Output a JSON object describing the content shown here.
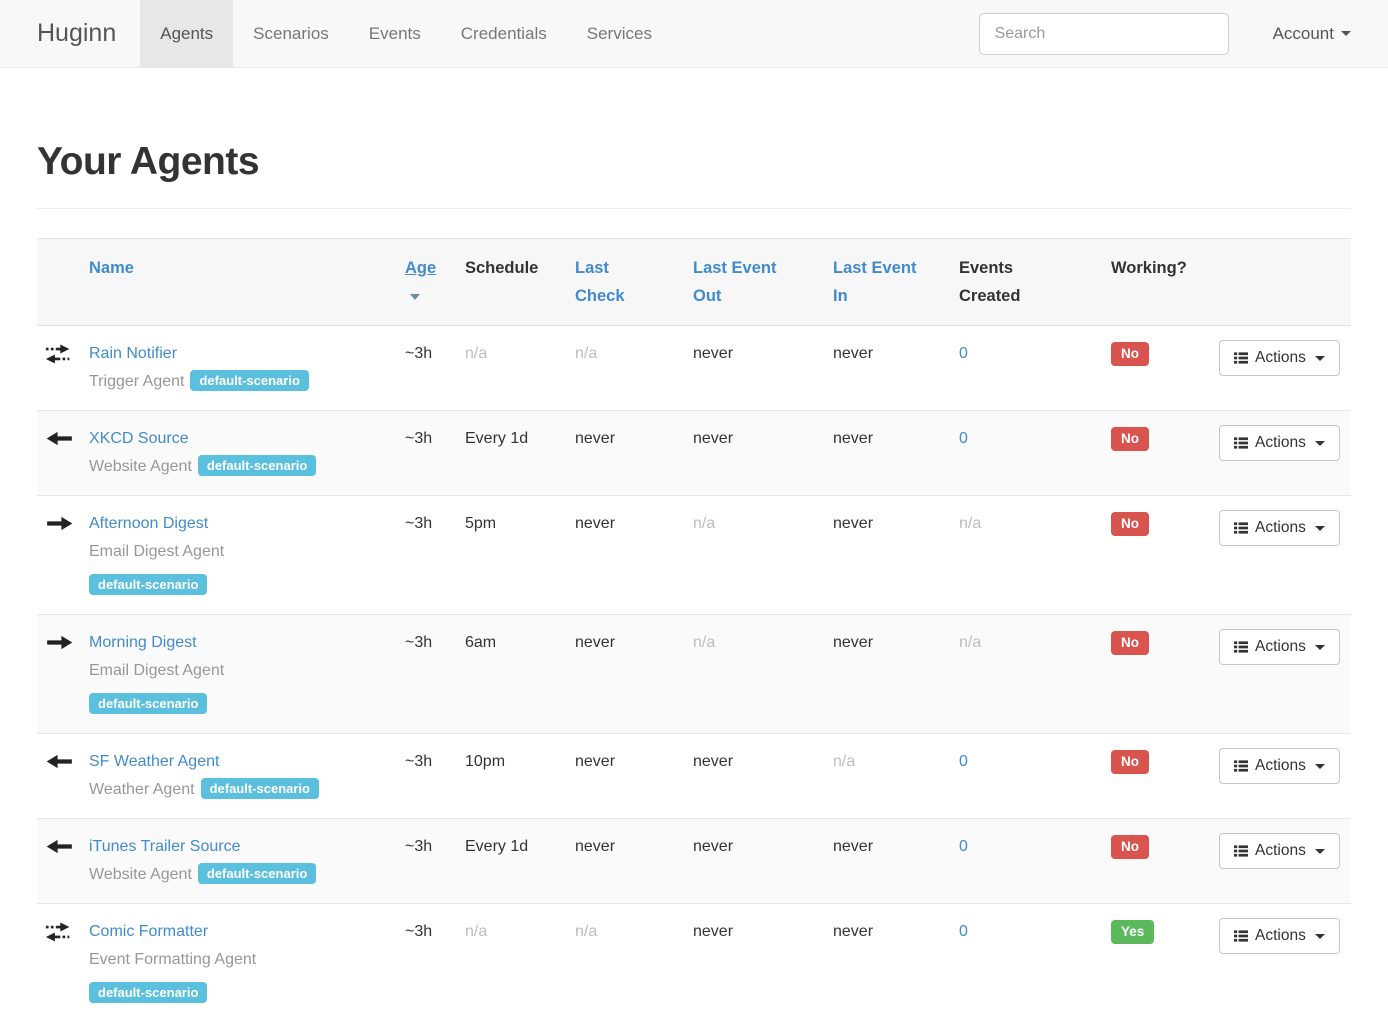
{
  "navbar": {
    "brand": "Huginn",
    "items": [
      {
        "label": "Agents",
        "active": true
      },
      {
        "label": "Scenarios",
        "active": false
      },
      {
        "label": "Events",
        "active": false
      },
      {
        "label": "Credentials",
        "active": false
      },
      {
        "label": "Services",
        "active": false
      }
    ],
    "search_placeholder": "Search",
    "account_label": "Account"
  },
  "page": {
    "title": "Your Agents"
  },
  "table": {
    "columns": [
      {
        "key": "icon",
        "label": "",
        "link": false,
        "sorted": false
      },
      {
        "key": "name",
        "label": "Name",
        "link": true,
        "sorted": false
      },
      {
        "key": "age",
        "label": "Age",
        "link": true,
        "sorted": true
      },
      {
        "key": "schedule",
        "label": "Schedule",
        "link": false,
        "sorted": false
      },
      {
        "key": "last-check",
        "label": "Last Check",
        "link": true,
        "sorted": false
      },
      {
        "key": "last-event-out",
        "label": "Last Event Out",
        "link": true,
        "sorted": false
      },
      {
        "key": "last-event-in",
        "label": "Last Event In",
        "link": true,
        "sorted": false
      },
      {
        "key": "events-created",
        "label": "Events Created",
        "link": false,
        "sorted": false
      },
      {
        "key": "working",
        "label": "Working?",
        "link": false,
        "sorted": false
      },
      {
        "key": "actions",
        "label": "",
        "link": false,
        "sorted": false
      }
    ],
    "actions_label": "Actions",
    "rows": [
      {
        "icon": "arrows-both-icon",
        "name": "Rain Notifier",
        "type": "Trigger Agent",
        "scenario": "default-scenario",
        "badge_own_line": false,
        "age": "~3h",
        "schedule": "n/a",
        "last_check": "n/a",
        "last_event_out": "never",
        "last_event_in": "never",
        "events_created": "0",
        "working": "No"
      },
      {
        "icon": "arrow-left-icon",
        "name": "XKCD Source",
        "type": "Website Agent",
        "scenario": "default-scenario",
        "badge_own_line": false,
        "age": "~3h",
        "schedule": "Every 1d",
        "last_check": "never",
        "last_event_out": "never",
        "last_event_in": "never",
        "events_created": "0",
        "working": "No"
      },
      {
        "icon": "arrow-right-icon",
        "name": "Afternoon Digest",
        "type": "Email Digest Agent",
        "scenario": "default-scenario",
        "badge_own_line": true,
        "age": "~3h",
        "schedule": "5pm",
        "last_check": "never",
        "last_event_out": "n/a",
        "last_event_in": "never",
        "events_created": "n/a",
        "working": "No"
      },
      {
        "icon": "arrow-right-icon",
        "name": "Morning Digest",
        "type": "Email Digest Agent",
        "scenario": "default-scenario",
        "badge_own_line": true,
        "age": "~3h",
        "schedule": "6am",
        "last_check": "never",
        "last_event_out": "n/a",
        "last_event_in": "never",
        "events_created": "n/a",
        "working": "No"
      },
      {
        "icon": "arrow-left-icon",
        "name": "SF Weather Agent",
        "type": "Weather Agent",
        "scenario": "default-scenario",
        "badge_own_line": false,
        "age": "~3h",
        "schedule": "10pm",
        "last_check": "never",
        "last_event_out": "never",
        "last_event_in": "n/a",
        "events_created": "0",
        "working": "No"
      },
      {
        "icon": "arrow-left-icon",
        "name": "iTunes Trailer Source",
        "type": "Website Agent",
        "scenario": "default-scenario",
        "badge_own_line": false,
        "age": "~3h",
        "schedule": "Every 1d",
        "last_check": "never",
        "last_event_out": "never",
        "last_event_in": "never",
        "events_created": "0",
        "working": "No"
      },
      {
        "icon": "arrows-both-icon",
        "name": "Comic Formatter",
        "type": "Event Formatting Agent",
        "scenario": "default-scenario",
        "badge_own_line": true,
        "age": "~3h",
        "schedule": "n/a",
        "last_check": "n/a",
        "last_event_out": "never",
        "last_event_in": "never",
        "events_created": "0",
        "working": "Yes"
      }
    ]
  },
  "colors": {
    "link_blue": "#428bca",
    "badge_info": "#5bc0de",
    "status_no": "#d9534f",
    "status_yes": "#5cb85c",
    "navbar_bg": "#f8f8f8",
    "navbar_active_bg": "#e7e7e7"
  }
}
